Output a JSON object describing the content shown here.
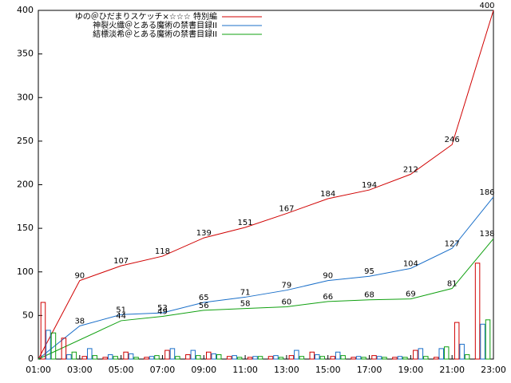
{
  "chart_data": [
    {
      "type": "line",
      "xlim": [
        1,
        23
      ],
      "ylim": [
        0,
        400
      ],
      "xticks": [
        {
          "value": 1,
          "label": "01:00"
        },
        {
          "value": 3,
          "label": "03:00"
        },
        {
          "value": 5,
          "label": "05:00"
        },
        {
          "value": 7,
          "label": "07:00"
        },
        {
          "value": 9,
          "label": "09:00"
        },
        {
          "value": 11,
          "label": "11:00"
        },
        {
          "value": 13,
          "label": "13:00"
        },
        {
          "value": 15,
          "label": "15:00"
        },
        {
          "value": 17,
          "label": "17:00"
        },
        {
          "value": 19,
          "label": "19:00"
        },
        {
          "value": 21,
          "label": "21:00"
        },
        {
          "value": 23,
          "label": "23:00"
        }
      ],
      "yticks": [
        0,
        50,
        100,
        150,
        200,
        250,
        300,
        350,
        400
      ],
      "legend": "top-right",
      "series": [
        {
          "name": "ゆの＠ひだまりスケッチ×☆☆☆ 特別編",
          "color": "#d00000",
          "x": [
            1,
            3,
            5,
            7,
            9,
            11,
            13,
            15,
            17,
            19,
            21,
            23
          ],
          "values": [
            0,
            90,
            107,
            118,
            139,
            151,
            167,
            184,
            194,
            212,
            246,
            400
          ]
        },
        {
          "name": "神裂火織＠とある魔術の禁書目録II",
          "color": "#1a6fc9",
          "x": [
            1,
            3,
            5,
            7,
            9,
            11,
            13,
            15,
            17,
            19,
            21,
            23
          ],
          "values": [
            0,
            38,
            51,
            53,
            65,
            71,
            79,
            90,
            95,
            104,
            127,
            186
          ]
        },
        {
          "name": "結標淡希＠とある魔術の禁書目録II",
          "color": "#10a010",
          "x": [
            1,
            5,
            7,
            9,
            11,
            13,
            15,
            17,
            19,
            21,
            23
          ],
          "values": [
            0,
            44,
            49,
            56,
            58,
            60,
            66,
            68,
            69,
            81,
            138
          ]
        }
      ]
    },
    {
      "type": "bar",
      "xlim": [
        1,
        23
      ],
      "ylim": [
        0,
        400
      ],
      "x": [
        1,
        2,
        3,
        4,
        5,
        6,
        7,
        8,
        9,
        10,
        11,
        12,
        13,
        14,
        15,
        16,
        17,
        18,
        19,
        20,
        21,
        22
      ],
      "series": [
        {
          "color": "#d00000",
          "values": [
            65,
            24,
            3,
            2,
            8,
            2,
            10,
            5,
            8,
            3,
            2,
            3,
            4,
            8,
            3,
            2,
            4,
            2,
            10,
            2,
            42,
            110
          ]
        },
        {
          "color": "#1a6fc9",
          "values": [
            33,
            5,
            12,
            5,
            6,
            3,
            12,
            10,
            6,
            4,
            3,
            4,
            10,
            5,
            8,
            3,
            3,
            3,
            12,
            12,
            17,
            40
          ]
        },
        {
          "color": "#10a010",
          "values": [
            30,
            8,
            4,
            3,
            2,
            4,
            3,
            4,
            5,
            2,
            3,
            2,
            3,
            3,
            4,
            2,
            2,
            2,
            3,
            14,
            5,
            45
          ]
        }
      ]
    }
  ]
}
